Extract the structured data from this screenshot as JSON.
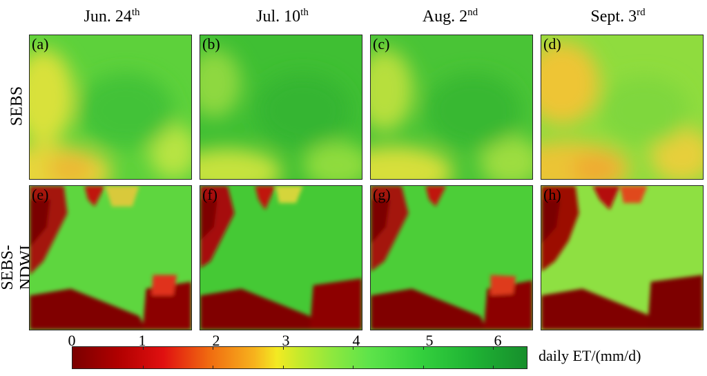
{
  "columns": [
    {
      "main": "Jun. 24",
      "sup": "th"
    },
    {
      "main": "Jul. 10",
      "sup": "th"
    },
    {
      "main": "Aug. 2",
      "sup": "nd"
    },
    {
      "main": "Sept. 3",
      "sup": "rd"
    }
  ],
  "rows": [
    "SEBS",
    "SEBS-NDWI"
  ],
  "panels": [
    "(a)",
    "(b)",
    "(c)",
    "(d)",
    "(e)",
    "(f)",
    "(g)",
    "(h)"
  ],
  "colorbar": {
    "label": "daily ET/(mm/d)",
    "min": 0,
    "max": 6.5,
    "ticks": [
      "0",
      "1",
      "2",
      "3",
      "4",
      "5",
      "6"
    ]
  }
}
